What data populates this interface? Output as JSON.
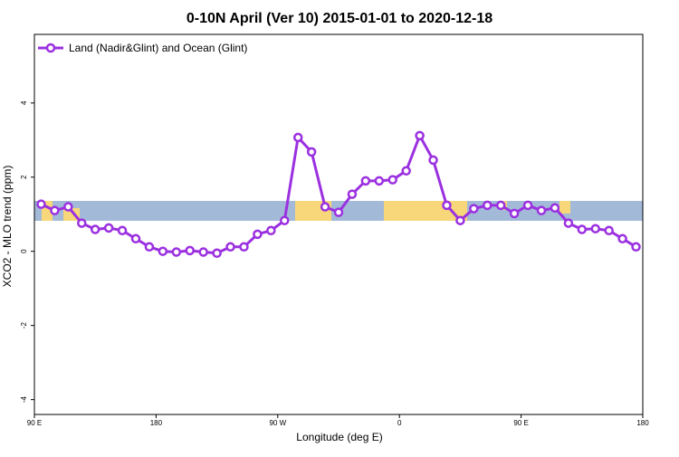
{
  "chart_data": {
    "type": "line",
    "title": "0-10N April (Ver 10)   2015-01-01 to 2020-12-18",
    "x_label": "Longitude (deg E)",
    "y_label": "XCO2 - MLO trend (ppm)",
    "x": [
      95,
      105,
      115,
      125,
      135,
      145,
      155,
      165,
      175,
      185,
      195,
      205,
      215,
      225,
      235,
      245,
      255,
      265,
      275,
      285,
      295,
      305,
      315,
      325,
      335,
      345,
      355,
      365,
      375,
      385,
      395,
      405,
      415,
      425,
      435,
      445,
      455,
      465,
      475,
      485,
      495,
      505,
      515,
      525,
      535
    ],
    "series": [
      {
        "name": "Land (Nadir&Glint) and Ocean (Glint)",
        "color": "#9b30e0",
        "values": [
          1.27,
          1.1,
          1.2,
          0.76,
          0.59,
          0.63,
          0.56,
          0.34,
          0.12,
          0.0,
          -0.02,
          0.02,
          -0.02,
          -0.05,
          0.12,
          0.12,
          0.46,
          0.56,
          0.83,
          3.07,
          2.68,
          1.2,
          1.05,
          1.54,
          1.9,
          1.9,
          1.93,
          2.17,
          3.12,
          2.46,
          1.24,
          0.83,
          1.15,
          1.24,
          1.24,
          1.02,
          1.24,
          1.1,
          1.17,
          0.76,
          0.59,
          0.61,
          0.56,
          0.34,
          0.12
        ]
      }
    ],
    "xlim": [
      90,
      540
    ],
    "xticks": [
      {
        "value": 90,
        "label": "90 E"
      },
      {
        "value": 180,
        "label": "180"
      },
      {
        "value": 270,
        "label": "90 W"
      },
      {
        "value": 360,
        "label": "0"
      },
      {
        "value": 450,
        "label": "90 E"
      },
      {
        "value": 540,
        "label": "180"
      }
    ],
    "ylim": [
      -4.4,
      5.85
    ],
    "yticks": [
      -4,
      -2,
      0,
      2,
      4
    ],
    "legend": "top-left"
  }
}
